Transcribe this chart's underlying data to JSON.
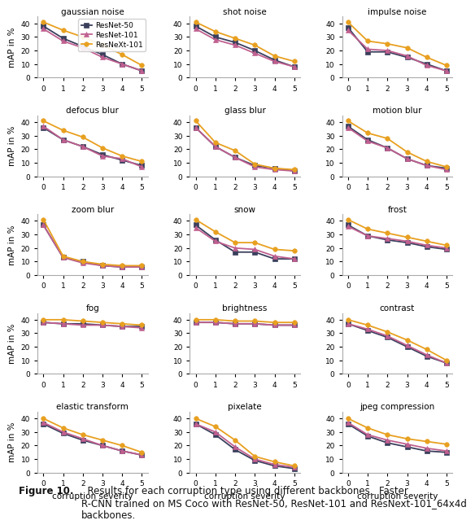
{
  "titles": [
    "gaussian noise",
    "shot noise",
    "impulse noise",
    "defocus blur",
    "glass blur",
    "motion blur",
    "zoom blur",
    "snow",
    "frost",
    "fog",
    "brightness",
    "contrast",
    "elastic transform",
    "pixelate",
    "jpeg compression"
  ],
  "series_labels": [
    "ResNet-50",
    "ResNet-101",
    "ResNeXt-101"
  ],
  "series_colors": [
    "#3a3f5c",
    "#c06090",
    "#e8a020"
  ],
  "series_markers": [
    "s",
    "^",
    "o"
  ],
  "x": [
    0,
    1,
    2,
    3,
    4,
    5
  ],
  "data": {
    "gaussian noise": [
      [
        38,
        29,
        23,
        17,
        10,
        5
      ],
      [
        36,
        27,
        22,
        15,
        10,
        5
      ],
      [
        41,
        35,
        30,
        24,
        17,
        9
      ]
    ],
    "shot noise": [
      [
        38,
        30,
        26,
        20,
        13,
        8
      ],
      [
        36,
        28,
        24,
        18,
        12,
        8
      ],
      [
        41,
        34,
        29,
        24,
        16,
        12
      ]
    ],
    "impulse noise": [
      [
        37,
        19,
        19,
        15,
        10,
        5
      ],
      [
        35,
        21,
        20,
        16,
        9,
        5
      ],
      [
        41,
        27,
        25,
        22,
        15,
        9
      ]
    ],
    "defocus blur": [
      [
        36,
        27,
        22,
        16,
        12,
        8
      ],
      [
        37,
        27,
        22,
        15,
        13,
        7
      ],
      [
        41,
        34,
        29,
        21,
        15,
        11
      ]
    ],
    "glass blur": [
      [
        36,
        22,
        14,
        8,
        6,
        4
      ],
      [
        36,
        22,
        14,
        7,
        5,
        4
      ],
      [
        41,
        25,
        19,
        9,
        6,
        5
      ]
    ],
    "motion blur": [
      [
        37,
        27,
        21,
        13,
        8,
        6
      ],
      [
        36,
        26,
        21,
        13,
        8,
        5
      ],
      [
        41,
        32,
        28,
        18,
        11,
        7
      ]
    ],
    "zoom blur": [
      [
        37,
        13,
        10,
        7,
        6,
        6
      ],
      [
        37,
        13,
        9,
        7,
        6,
        6
      ],
      [
        41,
        14,
        10,
        8,
        7,
        7
      ]
    ],
    "snow": [
      [
        37,
        26,
        17,
        17,
        12,
        12
      ],
      [
        35,
        25,
        20,
        19,
        14,
        12
      ],
      [
        41,
        32,
        24,
        24,
        19,
        18
      ]
    ],
    "frost": [
      [
        37,
        29,
        26,
        24,
        21,
        19
      ],
      [
        36,
        29,
        27,
        25,
        22,
        20
      ],
      [
        41,
        34,
        31,
        28,
        25,
        22
      ]
    ],
    "fog": [
      [
        38,
        37,
        37,
        36,
        35,
        35
      ],
      [
        38,
        37,
        36,
        36,
        35,
        34
      ],
      [
        40,
        40,
        39,
        38,
        37,
        36
      ]
    ],
    "brightness": [
      [
        38,
        38,
        37,
        37,
        36,
        36
      ],
      [
        38,
        38,
        37,
        37,
        36,
        36
      ],
      [
        40,
        40,
        39,
        39,
        38,
        38
      ]
    ],
    "contrast": [
      [
        37,
        32,
        27,
        20,
        13,
        8
      ],
      [
        37,
        33,
        28,
        21,
        14,
        8
      ],
      [
        40,
        36,
        31,
        25,
        18,
        10
      ]
    ],
    "elastic transform": [
      [
        36,
        29,
        24,
        20,
        16,
        13
      ],
      [
        37,
        30,
        25,
        20,
        16,
        13
      ],
      [
        40,
        33,
        28,
        24,
        20,
        15
      ]
    ],
    "pixelate": [
      [
        36,
        28,
        17,
        9,
        5,
        3
      ],
      [
        36,
        30,
        19,
        10,
        6,
        4
      ],
      [
        40,
        34,
        24,
        12,
        8,
        5
      ]
    ],
    "jpeg compression": [
      [
        36,
        27,
        22,
        19,
        16,
        15
      ],
      [
        37,
        28,
        24,
        21,
        18,
        16
      ],
      [
        40,
        33,
        28,
        25,
        23,
        21
      ]
    ]
  },
  "xlabel_bottom": "corruption severity",
  "ylabel": "mAP in %",
  "ylim": [
    0,
    45
  ],
  "yticks": [
    0,
    10,
    20,
    30,
    40
  ],
  "caption_bold": "Figure 10.",
  "caption_normal": "  Results for each corruption type using different backbones.  Faster\nR-CNN trained on MS Coco with ResNet-50, ResNet-101 and ResNext-101_64x4d\nbackbones.",
  "background_color": "#ffffff"
}
